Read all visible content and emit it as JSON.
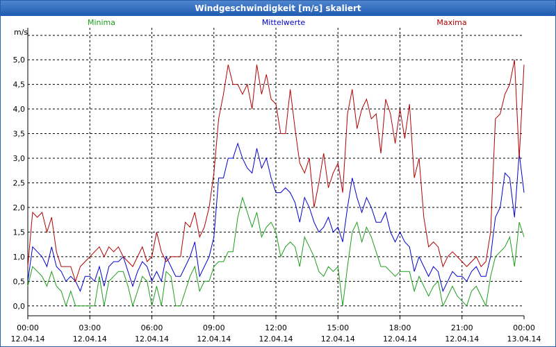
{
  "window": {
    "title": "Windgeschwindigkeit [m/s] skaliert"
  },
  "colors": {
    "minima": "#1a9e1a",
    "mittelwerte": "#0000cc",
    "maxima": "#b00000",
    "grid": "#000000",
    "titlebar": "#2a5fa8"
  },
  "chart_data": {
    "type": "line",
    "title": "Windgeschwindigkeit [m/s] skaliert",
    "ylabel": "m/s",
    "xlabel": "",
    "ylim": [
      -0.2,
      5.65
    ],
    "xlim": [
      0,
      24
    ],
    "grid": true,
    "legend_position": "top",
    "y_ticks": [
      0.0,
      0.5,
      1.0,
      1.5,
      2.0,
      2.5,
      3.0,
      3.5,
      4.0,
      4.5,
      5.0
    ],
    "y_tick_labels": [
      "0,0",
      "0,5",
      "1,0",
      "1,5",
      "2,0",
      "2,5",
      "3,0",
      "3,5",
      "4,0",
      "4,5",
      "5,0"
    ],
    "x_ticks": [
      0,
      3,
      6,
      9,
      12,
      15,
      18,
      21,
      24
    ],
    "x_tick_labels": [
      {
        "time": "00:00",
        "date": "12.04.14"
      },
      {
        "time": "03:00",
        "date": "12.04.14"
      },
      {
        "time": "06:00",
        "date": "12.04.14"
      },
      {
        "time": "09:00",
        "date": "12.04.14"
      },
      {
        "time": "12:00",
        "date": "12.04.14"
      },
      {
        "time": "15:00",
        "date": "12.04.14"
      },
      {
        "time": "18:00",
        "date": "12.04.14"
      },
      {
        "time": "21:00",
        "date": "12.04.14"
      },
      {
        "time": "00:00",
        "date": "13.04.14"
      }
    ],
    "series": [
      {
        "name": "Minima",
        "color": "#1a9e1a",
        "values": [
          0.4,
          0.8,
          0.7,
          0.6,
          0.4,
          0.7,
          0.4,
          0.3,
          0.0,
          0.3,
          0.0,
          0.0,
          0.0,
          0.0,
          0.0,
          0.6,
          0.0,
          0.5,
          0.6,
          0.7,
          0.7,
          0.4,
          0.0,
          0.3,
          0.6,
          0.5,
          0.0,
          0.4,
          0.0,
          0.7,
          0.6,
          0.0,
          0.0,
          0.3,
          0.6,
          0.8,
          0.3,
          0.5,
          0.5,
          0.8,
          0.9,
          0.9,
          1.1,
          1.1,
          1.8,
          2.2,
          1.9,
          1.6,
          1.9,
          1.4,
          1.6,
          1.7,
          1.5,
          1.0,
          1.2,
          1.3,
          1.2,
          0.8,
          1.4,
          1.2,
          1.0,
          0.7,
          0.6,
          0.8,
          0.7,
          0.8,
          0.0,
          0.8,
          1.5,
          1.7,
          1.3,
          1.6,
          1.4,
          1.1,
          0.8,
          0.8,
          0.7,
          0.6,
          0.7,
          0.7,
          0.7,
          0.3,
          0.6,
          0.4,
          0.2,
          0.4,
          0.5,
          0.0,
          0.2,
          0.4,
          0.2,
          0.1,
          0.0,
          0.3,
          0.4,
          0.2,
          0.0,
          0.6,
          1.0,
          1.1,
          1.2,
          1.4,
          0.8,
          1.7,
          1.4
        ]
      },
      {
        "name": "Mittelwerte",
        "color": "#0000cc",
        "values": [
          0.5,
          1.2,
          1.1,
          1.0,
          0.8,
          1.2,
          0.8,
          0.7,
          0.5,
          0.6,
          0.5,
          0.3,
          0.6,
          0.6,
          0.5,
          0.8,
          0.4,
          0.8,
          0.9,
          0.9,
          1.0,
          0.7,
          0.4,
          0.7,
          0.9,
          0.8,
          0.5,
          0.7,
          0.5,
          1.0,
          0.8,
          0.6,
          0.6,
          0.8,
          1.0,
          1.3,
          0.6,
          0.8,
          1.0,
          1.4,
          2.6,
          2.6,
          3.0,
          3.0,
          3.3,
          3.0,
          2.8,
          2.7,
          3.2,
          2.8,
          3.0,
          2.6,
          2.3,
          2.3,
          2.4,
          2.3,
          2.1,
          1.7,
          2.2,
          2.0,
          1.7,
          1.5,
          1.6,
          1.8,
          1.5,
          1.6,
          1.3,
          2.0,
          2.6,
          2.2,
          1.9,
          2.2,
          2.0,
          1.7,
          1.7,
          1.9,
          1.5,
          1.3,
          1.5,
          1.3,
          1.2,
          0.7,
          1.0,
          0.8,
          0.6,
          0.8,
          0.7,
          0.3,
          0.5,
          0.7,
          0.6,
          0.6,
          0.5,
          0.7,
          0.8,
          0.6,
          0.6,
          1.0,
          1.8,
          2.0,
          2.7,
          2.6,
          1.8,
          3.1,
          2.3
        ]
      },
      {
        "name": "Maxima",
        "color": "#b00000",
        "values": [
          0.8,
          1.9,
          1.8,
          1.9,
          1.5,
          1.8,
          1.1,
          0.8,
          0.8,
          0.8,
          0.5,
          0.8,
          0.9,
          1.0,
          1.1,
          1.2,
          1.0,
          1.2,
          1.1,
          1.2,
          1.0,
          0.9,
          0.8,
          1.0,
          1.2,
          0.9,
          1.0,
          1.5,
          1.1,
          0.9,
          1.0,
          1.0,
          1.0,
          1.7,
          1.6,
          1.9,
          1.4,
          1.6,
          2.0,
          2.7,
          3.8,
          4.3,
          4.9,
          4.5,
          4.5,
          4.3,
          4.5,
          4.0,
          4.9,
          4.3,
          4.7,
          4.2,
          4.1,
          3.5,
          3.5,
          4.4,
          3.6,
          2.9,
          2.7,
          3.0,
          2.0,
          2.5,
          3.1,
          2.4,
          2.7,
          2.9,
          2.3,
          3.9,
          4.4,
          3.6,
          4.0,
          4.2,
          3.8,
          3.9,
          3.1,
          4.2,
          3.9,
          3.3,
          4.0,
          3.4,
          4.1,
          2.6,
          3.0,
          1.8,
          1.2,
          1.3,
          1.2,
          0.8,
          1.0,
          1.1,
          1.0,
          0.9,
          0.8,
          0.9,
          1.0,
          0.8,
          0.9,
          1.5,
          3.8,
          3.9,
          4.3,
          4.5,
          5.0,
          3.0,
          4.9
        ]
      }
    ]
  }
}
